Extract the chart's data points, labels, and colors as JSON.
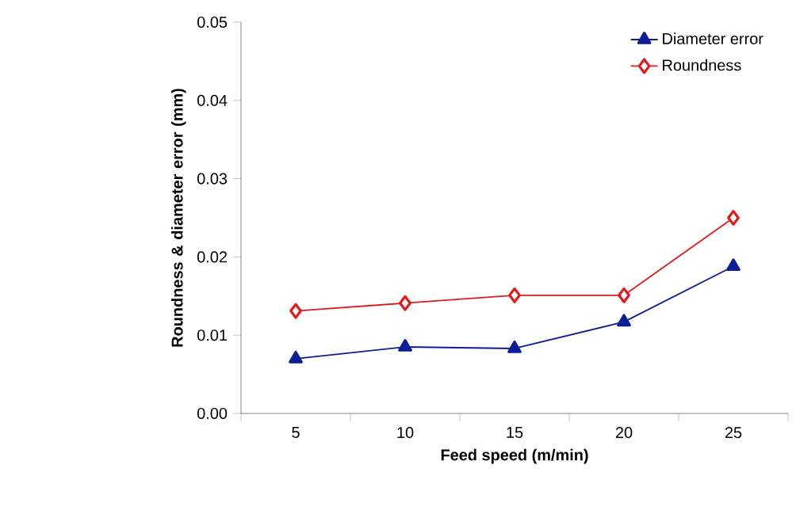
{
  "chart_data": {
    "type": "line",
    "xlabel": "Feed speed (m/min)",
    "ylabel": "Roundness & diameter error (mm)",
    "categories": [
      "5",
      "10",
      "15",
      "20",
      "25"
    ],
    "series": [
      {
        "name": "Diameter error",
        "color": "#0a1e96",
        "marker": "triangle",
        "values": [
          0.007,
          0.0085,
          0.0083,
          0.0117,
          0.0188
        ]
      },
      {
        "name": "Roundness",
        "color": "#e31a1c",
        "marker": "diamond",
        "values": [
          0.0131,
          0.0141,
          0.0151,
          0.0151,
          0.025
        ]
      }
    ],
    "ylim": [
      0,
      0.05
    ],
    "yticks": [
      {
        "value": 0,
        "label": "0.00"
      },
      {
        "value": 0.01,
        "label": "0.01"
      },
      {
        "value": 0.02,
        "label": "0.02"
      },
      {
        "value": 0.03,
        "label": "0.03"
      },
      {
        "value": 0.04,
        "label": "0.04"
      },
      {
        "value": 0.05,
        "label": "0.05"
      }
    ],
    "grid": false,
    "legend": "top right"
  }
}
